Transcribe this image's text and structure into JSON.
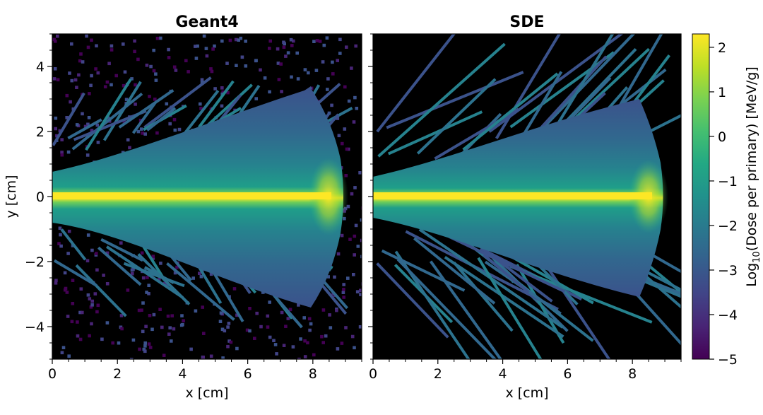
{
  "chart_data": [
    {
      "type": "heatmap",
      "title": "Geant4",
      "xlabel": "x [cm]",
      "ylabel": "y [cm]",
      "xlim": [
        0,
        9.5
      ],
      "ylim": [
        -5,
        5
      ],
      "xticks": [
        "0",
        "2",
        "4",
        "6",
        "8"
      ],
      "yticks": [
        "4",
        "2",
        "0",
        "−2",
        "−4"
      ],
      "background_noise": "high",
      "description_values": {
        "beam_core_log10_dose": 2.2,
        "beam_end_x_cm": 9.0,
        "lateral_halfwidth_at_end_cm": 3.4
      }
    },
    {
      "type": "heatmap",
      "title": "SDE",
      "xlabel": "x [cm]",
      "xlim": [
        0,
        9.5
      ],
      "ylim": [
        -5,
        5
      ],
      "xticks": [
        "0",
        "2",
        "4",
        "6",
        "8"
      ],
      "background_noise": "none",
      "description_values": {
        "beam_core_log10_dose": 2.2,
        "beam_end_x_cm": 9.0,
        "lateral_halfwidth_at_end_cm": 3.4
      }
    }
  ],
  "colorbar": {
    "label_prefix": "Log",
    "label_sub": "10",
    "label_suffix": "(Dose per primary) [MeV/g]",
    "range": [
      -5,
      2.3
    ],
    "colormap": "viridis",
    "ticks": [
      "2",
      "1",
      "0",
      "−1",
      "−2",
      "−3",
      "−4",
      "−5"
    ]
  }
}
